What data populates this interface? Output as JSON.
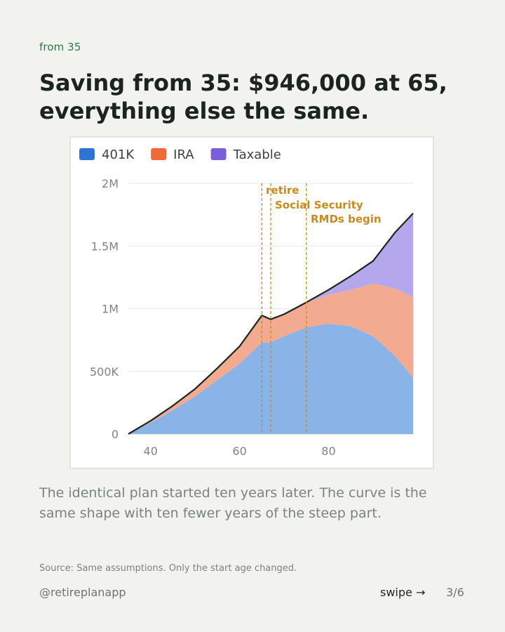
{
  "eyebrow": "from 35",
  "headline": "Saving from 35: $946,000 at 65, everything else the same.",
  "caption": "The identical plan started ten years later. The curve is the same shape with ten fewer years of the steep part.",
  "source": "Source: Same assumptions. Only the start age changed.",
  "footer": {
    "handle": "@retireplanapp",
    "swipe": "swipe →",
    "page": "3/6"
  },
  "chart_data": {
    "type": "area",
    "stacked": true,
    "legend_position": "top-left",
    "grid": true,
    "xlim": [
      35,
      99
    ],
    "ylim": [
      0,
      2000000
    ],
    "x_ticks": [
      40,
      60,
      80
    ],
    "x_tick_labels": [
      "40",
      "60",
      "80"
    ],
    "y_ticks": [
      0,
      500000,
      1000000,
      1500000,
      2000000
    ],
    "y_tick_labels": [
      "0",
      "500K",
      "1M",
      "1.5M",
      "2M"
    ],
    "x": [
      35,
      40,
      45,
      50,
      55,
      60,
      65,
      67,
      70,
      75,
      80,
      85,
      90,
      95,
      99
    ],
    "series": [
      {
        "name": "401K",
        "color": "#8ab4e8",
        "swatch": "#2f74d0",
        "values": [
          0,
          90000,
          190000,
          300000,
          430000,
          560000,
          730000,
          730000,
          780000,
          850000,
          880000,
          860000,
          780000,
          620000,
          450000
        ]
      },
      {
        "name": "IRA",
        "color": "#f2ab90",
        "swatch": "#ee6a3a",
        "values": [
          0,
          15000,
          35000,
          60000,
          95000,
          140000,
          215000,
          185000,
          175000,
          200000,
          230000,
          290000,
          420000,
          540000,
          640000
        ]
      },
      {
        "name": "Taxable",
        "color": "#b4a7ec",
        "swatch": "#7b5fd9",
        "values": [
          0,
          0,
          0,
          0,
          0,
          0,
          0,
          0,
          0,
          0,
          40000,
          110000,
          180000,
          450000,
          670000
        ]
      }
    ],
    "annotations": [
      {
        "label": "retire",
        "x": 65
      },
      {
        "label": "Social Security",
        "x": 67
      },
      {
        "label": "RMDs begin",
        "x": 75
      }
    ]
  }
}
